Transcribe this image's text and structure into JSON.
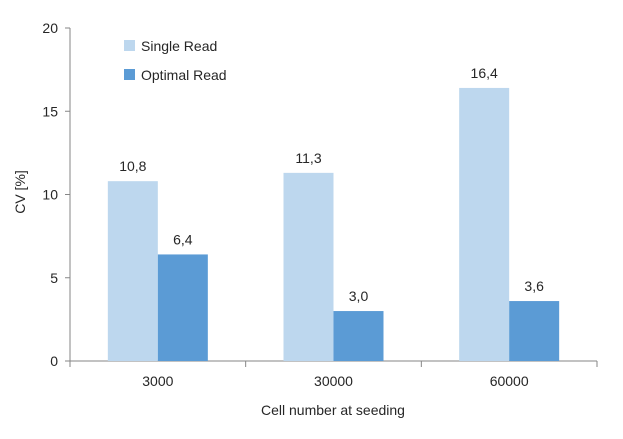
{
  "chart_data": {
    "type": "bar",
    "categories": [
      "3000",
      "30000",
      "60000"
    ],
    "series": [
      {
        "name": "Single Read",
        "values": [
          10.8,
          11.3,
          16.4
        ],
        "labels": [
          "10,8",
          "11,3",
          "16,4"
        ],
        "color": "#bdd7ee"
      },
      {
        "name": "Optimal Read",
        "values": [
          6.4,
          3.0,
          3.6
        ],
        "labels": [
          "6,4",
          "3,0",
          "3,6"
        ],
        "color": "#5b9bd5"
      }
    ],
    "title": "",
    "xlabel": "Cell number at seeding",
    "ylabel": "CV [%]",
    "ylim": [
      0,
      20
    ],
    "yticks": [
      0,
      5,
      10,
      15,
      20
    ],
    "grid": false,
    "legend_position": "top-left"
  }
}
